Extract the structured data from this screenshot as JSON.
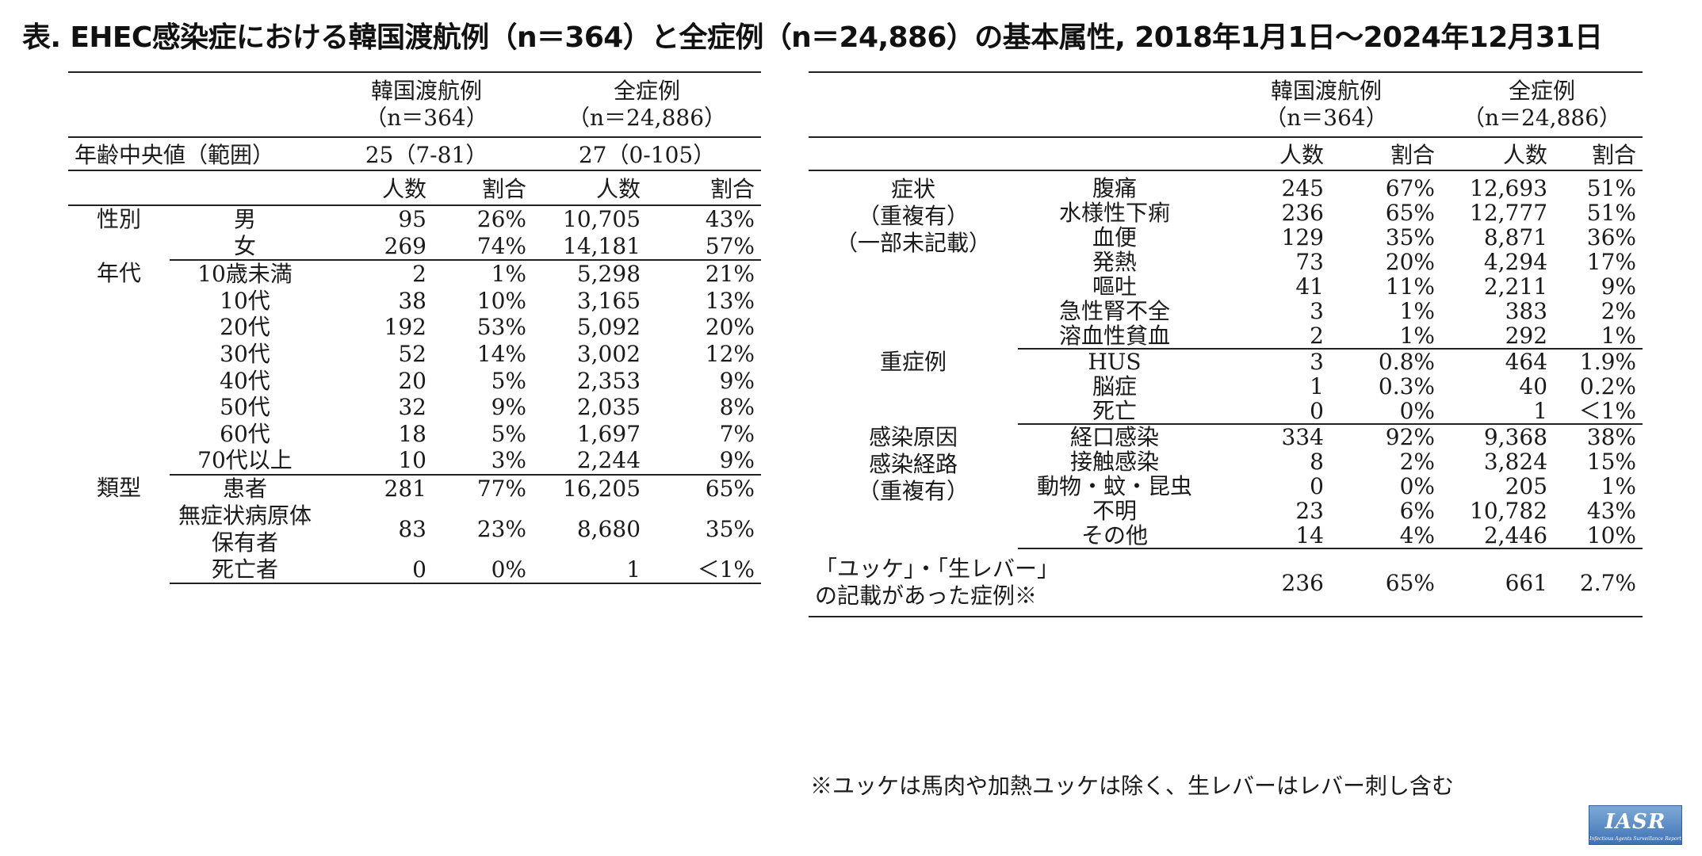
{
  "title": "表. EHEC感染症における韓国渡航例（n＝364）と全症例（n＝24,886）の基本属性, 2018年1月1日～2024年12月31日",
  "left": {
    "groups": [
      {
        "label": "韓国渡航例",
        "n": "（n＝364）"
      },
      {
        "label": "全症例",
        "n": "（n＝24,886）"
      }
    ],
    "median_label": "年齢中央値（範囲）",
    "median_korea": "25（7-81）",
    "median_all": "27（0-105）",
    "col_count": "人数",
    "col_pct": "割合",
    "sections": [
      {
        "category": "性別",
        "rows": [
          {
            "label": "男",
            "k_n": "95",
            "k_p": "26%",
            "a_n": "10,705",
            "a_p": "43%"
          },
          {
            "label": "女",
            "k_n": "269",
            "k_p": "74%",
            "a_n": "14,181",
            "a_p": "57%"
          }
        ]
      },
      {
        "category": "年代",
        "rows": [
          {
            "label": "10歳未満",
            "k_n": "2",
            "k_p": "1%",
            "a_n": "5,298",
            "a_p": "21%"
          },
          {
            "label": "10代",
            "k_n": "38",
            "k_p": "10%",
            "a_n": "3,165",
            "a_p": "13%"
          },
          {
            "label": "20代",
            "k_n": "192",
            "k_p": "53%",
            "a_n": "5,092",
            "a_p": "20%"
          },
          {
            "label": "30代",
            "k_n": "52",
            "k_p": "14%",
            "a_n": "3,002",
            "a_p": "12%"
          },
          {
            "label": "40代",
            "k_n": "20",
            "k_p": "5%",
            "a_n": "2,353",
            "a_p": "9%"
          },
          {
            "label": "50代",
            "k_n": "32",
            "k_p": "9%",
            "a_n": "2,035",
            "a_p": "8%"
          },
          {
            "label": "60代",
            "k_n": "18",
            "k_p": "5%",
            "a_n": "1,697",
            "a_p": "7%"
          },
          {
            "label": "70代以上",
            "k_n": "10",
            "k_p": "3%",
            "a_n": "2,244",
            "a_p": "9%"
          }
        ]
      },
      {
        "category": "類型",
        "rows": [
          {
            "label": "患者",
            "k_n": "281",
            "k_p": "77%",
            "a_n": "16,205",
            "a_p": "65%"
          },
          {
            "label": "無症状病原体\n保有者",
            "k_n": "83",
            "k_p": "23%",
            "a_n": "8,680",
            "a_p": "35%"
          },
          {
            "label": "死亡者",
            "k_n": "0",
            "k_p": "0%",
            "a_n": "1",
            "a_p": "＜1%"
          }
        ]
      }
    ]
  },
  "right": {
    "groups": [
      {
        "label": "韓国渡航例",
        "n": "（n＝364）"
      },
      {
        "label": "全症例",
        "n": "（n＝24,886）"
      }
    ],
    "col_count": "人数",
    "col_pct": "割合",
    "sections": [
      {
        "category": "症状\n（重複有）\n（一部未記載）",
        "rows": [
          {
            "label": "腹痛",
            "k_n": "245",
            "k_p": "67%",
            "a_n": "12,693",
            "a_p": "51%"
          },
          {
            "label": "水様性下痢",
            "k_n": "236",
            "k_p": "65%",
            "a_n": "12,777",
            "a_p": "51%"
          },
          {
            "label": "血便",
            "k_n": "129",
            "k_p": "35%",
            "a_n": "8,871",
            "a_p": "36%"
          },
          {
            "label": "発熱",
            "k_n": "73",
            "k_p": "20%",
            "a_n": "4,294",
            "a_p": "17%"
          },
          {
            "label": "嘔吐",
            "k_n": "41",
            "k_p": "11%",
            "a_n": "2,211",
            "a_p": "9%"
          },
          {
            "label": "急性腎不全",
            "k_n": "3",
            "k_p": "1%",
            "a_n": "383",
            "a_p": "2%"
          },
          {
            "label": "溶血性貧血",
            "k_n": "2",
            "k_p": "1%",
            "a_n": "292",
            "a_p": "1%"
          }
        ]
      },
      {
        "category": "重症例",
        "rows": [
          {
            "label": "HUS",
            "k_n": "3",
            "k_p": "0.8%",
            "a_n": "464",
            "a_p": "1.9%"
          },
          {
            "label": "脳症",
            "k_n": "1",
            "k_p": "0.3%",
            "a_n": "40",
            "a_p": "0.2%"
          },
          {
            "label": "死亡",
            "k_n": "0",
            "k_p": "0%",
            "a_n": "1",
            "a_p": "＜1%"
          }
        ]
      },
      {
        "category": "感染原因\n感染経路\n（重複有）",
        "rows": [
          {
            "label": "経口感染",
            "k_n": "334",
            "k_p": "92%",
            "a_n": "9,368",
            "a_p": "38%"
          },
          {
            "label": "接触感染",
            "k_n": "8",
            "k_p": "2%",
            "a_n": "3,824",
            "a_p": "15%"
          },
          {
            "label": "動物・蚊・昆虫",
            "k_n": "0",
            "k_p": "0%",
            "a_n": "205",
            "a_p": "1%"
          },
          {
            "label": "不明",
            "k_n": "23",
            "k_p": "6%",
            "a_n": "10,782",
            "a_p": "43%"
          },
          {
            "label": "その他",
            "k_n": "14",
            "k_p": "4%",
            "a_n": "2,446",
            "a_p": "10%"
          }
        ]
      }
    ],
    "final": {
      "label": "「ユッケ」・「生レバー」\nの記載があった症例※",
      "k_n": "236",
      "k_p": "65%",
      "a_n": "661",
      "a_p": "2.7%"
    }
  },
  "footnote": "※ユッケは馬肉や加熱ユッケは除く、生レバーはレバー刺し含む",
  "logo": {
    "text": "IASR",
    "subtitle": "Infectious Agents Surveillance Report"
  }
}
